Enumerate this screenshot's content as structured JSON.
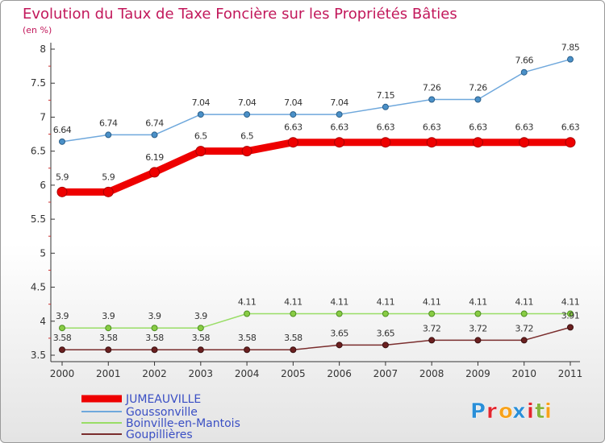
{
  "title": "Evolution du Taux de Taxe Foncière sur les Propriétés Bâties",
  "subtitle": "(en %)",
  "logo": {
    "letters": [
      "P",
      "r",
      "o",
      "x",
      "i",
      "t",
      "i"
    ],
    "colors": [
      "#2a8fd8",
      "#e2262e",
      "#f7a21b",
      "#2a8fd8",
      "#e2262e",
      "#87b53d",
      "#f7a21b"
    ]
  },
  "chart_data": {
    "type": "line",
    "categories": [
      "2000",
      "2001",
      "2002",
      "2003",
      "2004",
      "2005",
      "2006",
      "2007",
      "2008",
      "2009",
      "2010",
      "2011"
    ],
    "ylim": [
      3.5,
      8
    ],
    "yticks": [
      "3.5",
      "4",
      "4.5",
      "5",
      "5.5",
      "6",
      "6.5",
      "7",
      "7.5",
      "8"
    ],
    "legend_position": "bottom-left",
    "series": [
      {
        "name": "Goussonville",
        "color": "#6fa8dc",
        "values": [
          6.64,
          6.74,
          6.74,
          7.04,
          7.04,
          7.04,
          7.04,
          7.15,
          7.26,
          7.26,
          7.66,
          7.85
        ],
        "labels": [
          "6.64",
          "6.74",
          "6.74",
          "7.04",
          "7.04",
          "7.04",
          "7.04",
          "7.15",
          "7.26",
          "7.26",
          "7.66",
          "7.85"
        ]
      },
      {
        "name": "JUMEAUVILLE",
        "color": "#ee0000",
        "values": [
          5.9,
          5.9,
          6.19,
          6.5,
          6.5,
          6.63,
          6.63,
          6.63,
          6.63,
          6.63,
          6.63,
          6.63
        ],
        "labels": [
          "5.9",
          "5.9",
          "6.19",
          "6.5",
          "6.5",
          "6.63",
          "6.63",
          "6.63",
          "6.63",
          "6.63",
          "6.63",
          "6.63"
        ]
      },
      {
        "name": "Boinville-en-Mantois",
        "color": "#99dd66",
        "values": [
          3.9,
          3.9,
          3.9,
          3.9,
          4.11,
          4.11,
          4.11,
          4.11,
          4.11,
          4.11,
          4.11,
          4.11
        ],
        "labels": [
          "3.9",
          "3.9",
          "3.9",
          "3.9",
          "4.11",
          "4.11",
          "4.11",
          "4.11",
          "4.11",
          "4.11",
          "4.11",
          "4.11"
        ]
      },
      {
        "name": "Goupillières",
        "color": "#7a2d2d",
        "values": [
          3.58,
          3.58,
          3.58,
          3.58,
          3.58,
          3.58,
          3.65,
          3.65,
          3.72,
          3.72,
          3.72,
          3.91
        ],
        "labels": [
          "3.58",
          "3.58",
          "3.58",
          "3.58",
          "3.58",
          "3.58",
          "3.65",
          "3.65",
          "3.72",
          "3.72",
          "3.72",
          "3.91"
        ]
      }
    ],
    "legend": [
      "JUMEAUVILLE",
      "Goussonville",
      "Boinville-en-Mantois",
      "Goupillières"
    ]
  }
}
